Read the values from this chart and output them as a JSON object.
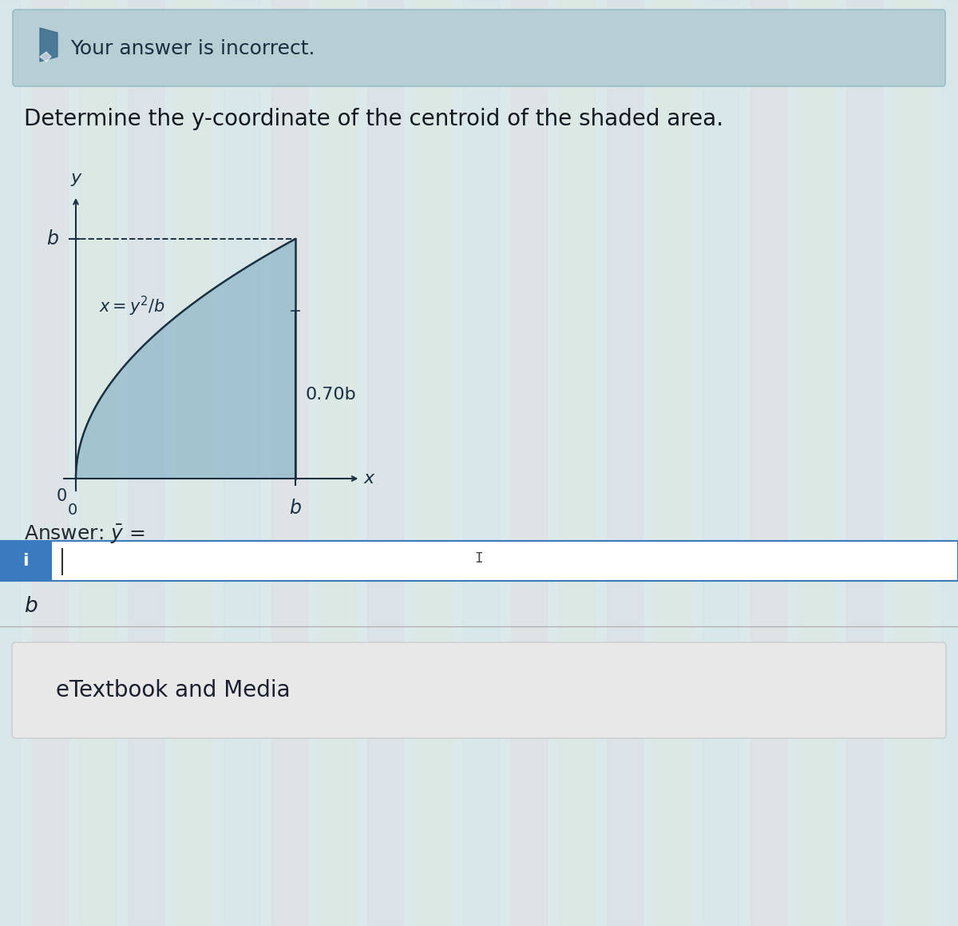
{
  "title_incorrect": "Your answer is incorrect.",
  "question_text": "Determine the y-coordinate of the centroid of the shaded area.",
  "answer_label": "Answer:",
  "ybar_label": "$\\bar{y}$ =",
  "answer_value": "b",
  "bottom_label": "eTextbook and Media",
  "curve_equation": "x=y²/b",
  "label_070b": "0.70b",
  "axis_label_x": "x",
  "axis_label_y": "y",
  "axis_label_b_x": "b",
  "axis_label_b_y": "b",
  "axis_label_0": "0",
  "bg_color_main": "#dce9ea",
  "shade_color": "#90b8c8",
  "shade_alpha": 0.75,
  "banner_color": "#b5cfd4",
  "input_box_color": "#3a7abf",
  "etextbook_bg": "#e8e8e8",
  "font_size_title": 18,
  "font_size_question": 20,
  "font_size_answer": 17,
  "font_size_bottom": 19,
  "font_size_axis": 15,
  "font_size_eq": 14
}
